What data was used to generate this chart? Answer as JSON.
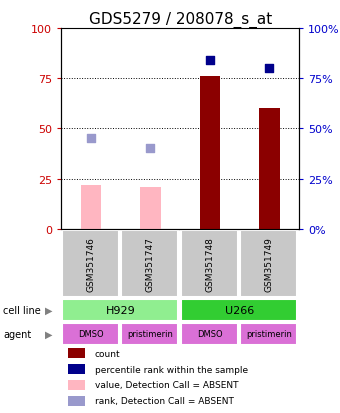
{
  "title": "GDS5279 / 208078_s_at",
  "samples": [
    "GSM351746",
    "GSM351747",
    "GSM351748",
    "GSM351749"
  ],
  "bar_values_absent": [
    22,
    21,
    0,
    0
  ],
  "bar_values_present": [
    0,
    0,
    76,
    60
  ],
  "rank_absent": [
    45,
    40,
    0,
    0
  ],
  "rank_present": [
    0,
    0,
    84,
    80
  ],
  "cell_line": [
    [
      "H929",
      2
    ],
    [
      "U266",
      2
    ]
  ],
  "cell_line_colors": [
    "#90EE90",
    "#32CD32"
  ],
  "agent": [
    "DMSO",
    "pristimerin",
    "DMSO",
    "pristimerin"
  ],
  "agent_color": "#DA70D6",
  "ylim": [
    0,
    100
  ],
  "yticks": [
    0,
    25,
    50,
    75,
    100
  ],
  "bar_color_absent": "#FFB6C1",
  "bar_color_present": "#8B0000",
  "rank_color_absent": "#9999CC",
  "rank_color_present": "#00008B",
  "title_fontsize": 11,
  "axis_label_color_left": "#CC0000",
  "axis_label_color_right": "#0000CC",
  "sample_box_color": "#C8C8C8"
}
